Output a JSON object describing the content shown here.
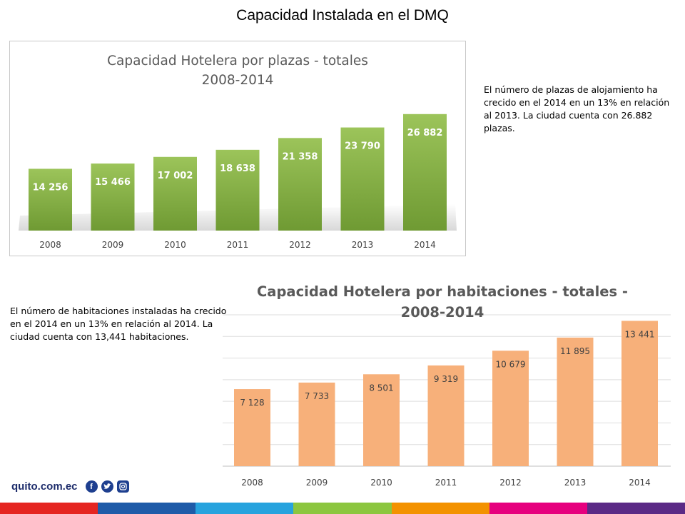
{
  "page": {
    "title": "Capacidad Instalada en el DMQ",
    "note_plazas": "El número de plazas de alojamiento ha crecido en el 2014 en un 13% en relación al 2013. La ciudad cuenta con 26.882 plazas.",
    "note_habitaciones": "El número de habitaciones instaladas ha crecido en el 2014 en un 13% en relación al 2014. La ciudad cuenta con 13,441 habitaciones."
  },
  "footer": {
    "brand": "quito.com.ec",
    "icons": [
      "facebook-icon",
      "twitter-icon",
      "instagram-icon"
    ],
    "stripe_colors": [
      "#e52521",
      "#1f5ba8",
      "#27a3de",
      "#8cc63f",
      "#f39200",
      "#e6007e",
      "#5b2a86"
    ]
  },
  "chart_data": [
    {
      "type": "bar",
      "title": "Capacidad Hotelera por plazas - totales",
      "subtitle": "2008-2014",
      "categories": [
        "2008",
        "2009",
        "2010",
        "2011",
        "2012",
        "2013",
        "2014"
      ],
      "values": [
        14256,
        15466,
        17002,
        18638,
        21358,
        23790,
        26882
      ],
      "value_labels": [
        "14 256",
        "15 466",
        "17 002",
        "18 638",
        "21 358",
        "23 790",
        "26 882"
      ],
      "color": "#86b247",
      "ylim": [
        0,
        28000
      ],
      "grid": false,
      "legend": "none"
    },
    {
      "type": "bar",
      "title": "Capacidad Hotelera por habitaciones - totales -",
      "subtitle": "2008-2014",
      "categories": [
        "2008",
        "2009",
        "2010",
        "2011",
        "2012",
        "2013",
        "2014"
      ],
      "values": [
        7128,
        7733,
        8501,
        9319,
        10679,
        11895,
        13441
      ],
      "value_labels": [
        "7 128",
        "7 733",
        "8 501",
        "9 319",
        "10 679",
        "11 895",
        "13 441"
      ],
      "color": "#f7b07a",
      "ylim": [
        0,
        14000
      ],
      "grid": true,
      "legend": "none"
    }
  ]
}
